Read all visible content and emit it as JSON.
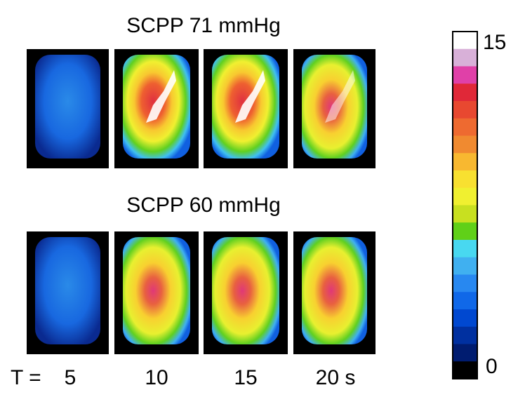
{
  "rows": [
    {
      "title": "SCPP 71 mmHg"
    },
    {
      "title": "SCPP 60 mmHg"
    }
  ],
  "time_axis": {
    "prefix": "T =",
    "labels": [
      "5",
      "10",
      "15",
      "20 s"
    ]
  },
  "colorbar": {
    "max_label": "15",
    "min_label": "0",
    "colors": [
      "#ffffff",
      "#d8b0d8",
      "#e040a8",
      "#e02838",
      "#e84830",
      "#ee6a30",
      "#f08a30",
      "#f8b830",
      "#f8e030",
      "#f0f030",
      "#c8e020",
      "#60d018",
      "#48d8f0",
      "#40b0f0",
      "#2888f0",
      "#1068e8",
      "#0048d0",
      "#0030a0",
      "#001c70",
      "#000000"
    ]
  }
}
